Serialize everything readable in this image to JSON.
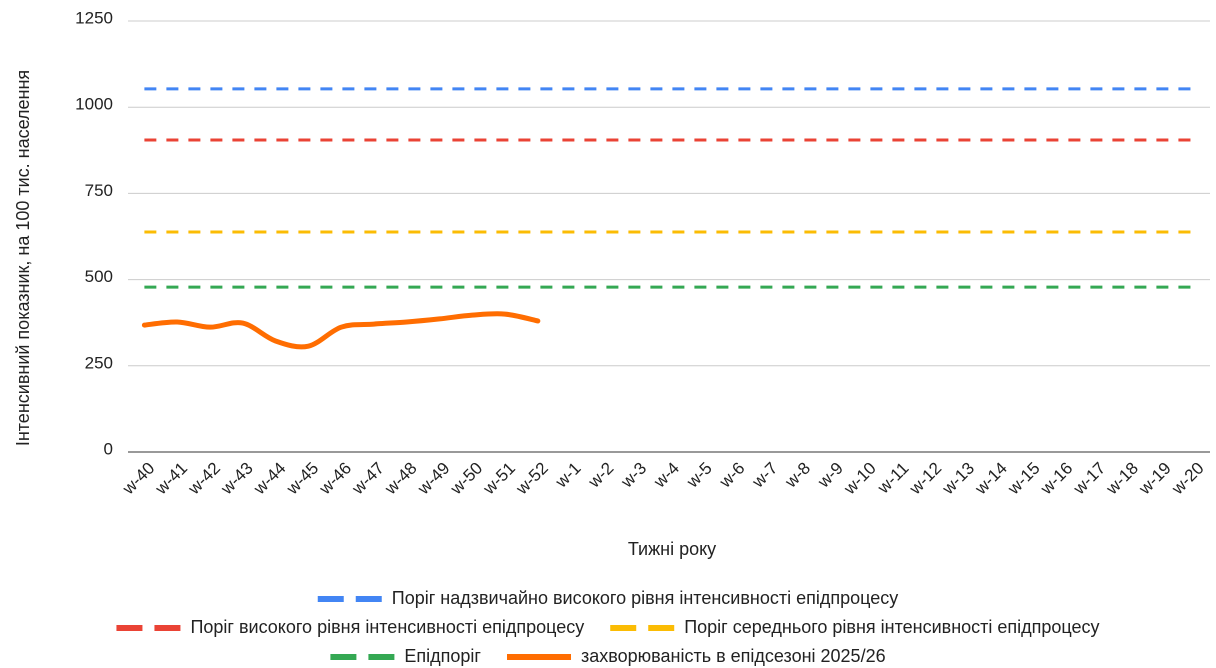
{
  "chart_data": {
    "type": "line",
    "x_label": "Тижні року",
    "y_label": "Інтенсивний показник, на 100 тис. населення",
    "categories": [
      "w-40",
      "w-41",
      "w-42",
      "w-43",
      "w-44",
      "w-45",
      "w-46",
      "w-47",
      "w-48",
      "w-49",
      "w-50",
      "w-51",
      "w-52",
      "w-1",
      "w-2",
      "w-3",
      "w-4",
      "w-5",
      "w-6",
      "w-7",
      "w-8",
      "w-9",
      "w-10",
      "w-11",
      "w-12",
      "w-13",
      "w-14",
      "w-15",
      "w-16",
      "w-17",
      "w-18",
      "w-19",
      "w-20"
    ],
    "ylim": [
      0,
      1250
    ],
    "yticks": [
      0,
      250,
      500,
      750,
      1000,
      1250
    ],
    "grid": true,
    "series": [
      {
        "name": "Поріг надзвичайно високого рівня інтенсивності епідпроцесу",
        "color": "#4285f4",
        "line_style": "dashed",
        "values": [
          1053,
          1053,
          1053,
          1053,
          1053,
          1053,
          1053,
          1053,
          1053,
          1053,
          1053,
          1053,
          1053,
          1053,
          1053,
          1053,
          1053,
          1053,
          1053,
          1053,
          1053,
          1053,
          1053,
          1053,
          1053,
          1053,
          1053,
          1053,
          1053,
          1053,
          1053,
          1053,
          1053
        ]
      },
      {
        "name": "Поріг високого рівня інтенсивності епідпроцесу",
        "color": "#ea4335",
        "line_style": "dashed",
        "values": [
          905,
          905,
          905,
          905,
          905,
          905,
          905,
          905,
          905,
          905,
          905,
          905,
          905,
          905,
          905,
          905,
          905,
          905,
          905,
          905,
          905,
          905,
          905,
          905,
          905,
          905,
          905,
          905,
          905,
          905,
          905,
          905,
          905
        ]
      },
      {
        "name": "Поріг середнього рівня інтенсивності епідпроцесу",
        "color": "#fbbc04",
        "line_style": "dashed",
        "values": [
          638,
          638,
          638,
          638,
          638,
          638,
          638,
          638,
          638,
          638,
          638,
          638,
          638,
          638,
          638,
          638,
          638,
          638,
          638,
          638,
          638,
          638,
          638,
          638,
          638,
          638,
          638,
          638,
          638,
          638,
          638,
          638,
          638
        ]
      },
      {
        "name": "Епідпоріг",
        "color": "#34a853",
        "line_style": "dashed",
        "values": [
          478,
          478,
          478,
          478,
          478,
          478,
          478,
          478,
          478,
          478,
          478,
          478,
          478,
          478,
          478,
          478,
          478,
          478,
          478,
          478,
          478,
          478,
          478,
          478,
          478,
          478,
          478,
          478,
          478,
          478,
          478,
          478,
          478
        ]
      },
      {
        "name": "захворюваність в епідсезоні 2025/26",
        "color": "#ff6d01",
        "line_style": "solid",
        "values": [
          368,
          377,
          362,
          374,
          322,
          307,
          362,
          371,
          377,
          386,
          397,
          400,
          380,
          null,
          null,
          null,
          null,
          null,
          null,
          null,
          null,
          null,
          null,
          null,
          null,
          null,
          null,
          null,
          null,
          null,
          null,
          null,
          null
        ]
      }
    ]
  }
}
